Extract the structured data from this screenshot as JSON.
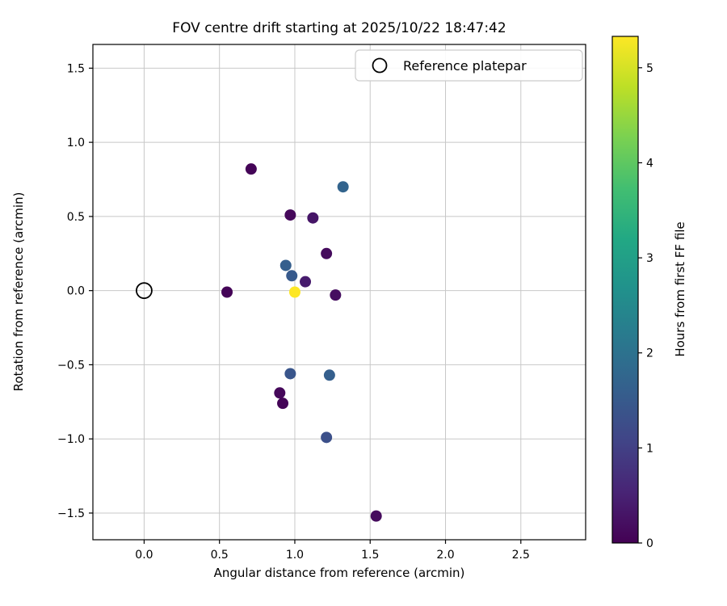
{
  "chart_data": {
    "type": "scatter",
    "title": "FOV centre drift starting at 2025/10/22 18:47:42",
    "xlabel": "Angular distance from reference (arcmin)",
    "ylabel": "Rotation from reference (arcmin)",
    "xlim": [
      -0.34,
      2.93
    ],
    "ylim": [
      -1.68,
      1.66
    ],
    "xticks": {
      "values": [
        0.0,
        0.5,
        1.0,
        1.5,
        2.0,
        2.5
      ],
      "labels": [
        "0.0",
        "0.5",
        "1.0",
        "1.5",
        "2.0",
        "2.5"
      ]
    },
    "yticks": {
      "values": [
        -1.5,
        -1.0,
        -0.5,
        0.0,
        0.5,
        1.0,
        1.5
      ],
      "labels": [
        "−1.5",
        "−1.0",
        "−0.5",
        "0.0",
        "0.5",
        "1.0",
        "1.5"
      ]
    },
    "grid": true,
    "legend": {
      "label": "Reference platepar",
      "marker": "open-circle",
      "position": "upper right"
    },
    "reference_point": {
      "x": 0.0,
      "y": 0.0
    },
    "points": [
      {
        "x": 0.71,
        "y": 0.82,
        "hours": 0.05
      },
      {
        "x": 1.32,
        "y": 0.7,
        "hours": 1.7
      },
      {
        "x": 0.97,
        "y": 0.51,
        "hours": 0.1
      },
      {
        "x": 1.12,
        "y": 0.49,
        "hours": 0.3
      },
      {
        "x": 1.21,
        "y": 0.25,
        "hours": 0.15
      },
      {
        "x": 0.94,
        "y": 0.17,
        "hours": 1.6
      },
      {
        "x": 0.98,
        "y": 0.1,
        "hours": 1.5
      },
      {
        "x": 1.07,
        "y": 0.06,
        "hours": 0.4
      },
      {
        "x": 0.55,
        "y": -0.01,
        "hours": 0.05
      },
      {
        "x": 1.27,
        "y": -0.03,
        "hours": 0.2
      },
      {
        "x": 0.97,
        "y": -0.56,
        "hours": 1.4
      },
      {
        "x": 1.23,
        "y": -0.57,
        "hours": 1.6
      },
      {
        "x": 0.9,
        "y": -0.69,
        "hours": 0.1
      },
      {
        "x": 0.92,
        "y": -0.76,
        "hours": 0.05
      },
      {
        "x": 1.21,
        "y": -0.99,
        "hours": 1.3
      },
      {
        "x": 1.54,
        "y": -1.52,
        "hours": 0.15
      },
      {
        "x": 1.0,
        "y": -0.01,
        "hours": 5.33
      }
    ],
    "colorbar": {
      "label": "Hours from first FF file",
      "min": 0,
      "max": 5.33,
      "ticks": [
        0,
        1,
        2,
        3,
        4,
        5
      ],
      "tick_labels": [
        "0",
        "1",
        "2",
        "3",
        "4",
        "5"
      ],
      "colormap": "viridis"
    },
    "colors": {
      "viridis_stops": [
        "#440154",
        "#482475",
        "#414487",
        "#355f8d",
        "#2a788e",
        "#21918c",
        "#22a884",
        "#42be71",
        "#7ad151",
        "#bddf26",
        "#fde725"
      ],
      "grid": "#c8c8c8",
      "spine": "#000000",
      "legend_border": "#cccccc",
      "background": "#ffffff"
    }
  }
}
